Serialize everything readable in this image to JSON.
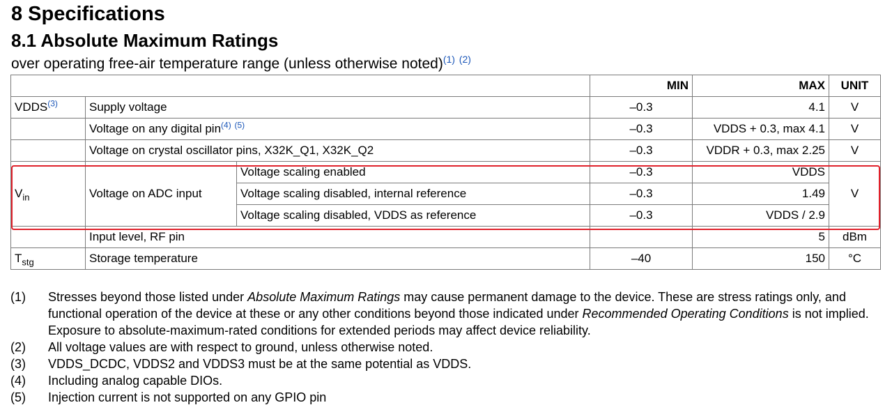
{
  "section_title": "8 Specifications",
  "subsection_title": "8.1 Absolute Maximum Ratings",
  "subtitle": {
    "text": "over operating free-air temperature range (unless otherwise noted)",
    "refs": [
      "(1)",
      "(2)"
    ]
  },
  "table": {
    "headers": {
      "min": "MIN",
      "max": "MAX",
      "unit": "UNIT"
    },
    "rows": [
      {
        "symbol": "VDDS",
        "symbol_ref": "(3)",
        "parameter": "Supply voltage",
        "min": "–0.3",
        "max": "4.1",
        "unit": "V"
      },
      {
        "symbol": "",
        "parameter": "Voltage on any digital pin",
        "parameter_refs": [
          "(4)",
          "(5)"
        ],
        "min": "–0.3",
        "max": "VDDS + 0.3, max 4.1",
        "unit": "V"
      },
      {
        "symbol": "",
        "parameter": "Voltage on crystal oscillator pins, X32K_Q1, X32K_Q2",
        "min": "–0.3",
        "max": "VDDR + 0.3, max 2.25",
        "unit": "V"
      },
      {
        "symbol_main": "V",
        "symbol_sub": "in",
        "parameter": "Voltage on ADC input",
        "unit": "V",
        "conditions": [
          {
            "label": "Voltage scaling enabled",
            "min": "–0.3",
            "max": "VDDS"
          },
          {
            "label": "Voltage scaling disabled, internal reference",
            "min": "–0.3",
            "max": "1.49"
          },
          {
            "label": "Voltage scaling disabled, VDDS as reference",
            "min": "–0.3",
            "max": "VDDS / 2.9"
          }
        ]
      },
      {
        "symbol": "",
        "parameter": "Input level, RF pin",
        "min": "",
        "max": "5",
        "unit": "dBm"
      },
      {
        "symbol_main": "T",
        "symbol_sub": "stg",
        "parameter": "Storage temperature",
        "min": "–40",
        "max": "150",
        "unit": "°C"
      }
    ]
  },
  "footnotes": [
    {
      "num": "(1)",
      "parts": [
        "Stresses beyond those listed under ",
        "Absolute Maximum Ratings",
        " may cause permanent damage to the device. These are stress ratings only, and functional operation of the device at these or any other conditions beyond those indicated under ",
        "Recommended Operating Conditions",
        " is not implied. Exposure to absolute-maximum-rated conditions for extended periods may affect device reliability."
      ]
    },
    {
      "num": "(2)",
      "text": "All voltage values are with respect to ground, unless otherwise noted."
    },
    {
      "num": "(3)",
      "text": "VDDS_DCDC, VDDS2 and VDDS3 must be at the same potential as VDDS."
    },
    {
      "num": "(4)",
      "text": "Including analog capable DIOs."
    },
    {
      "num": "(5)",
      "text": "Injection current is not supported on any GPIO pin"
    }
  ],
  "highlight_color": "#e0202a",
  "link_color": "#1a56b8"
}
